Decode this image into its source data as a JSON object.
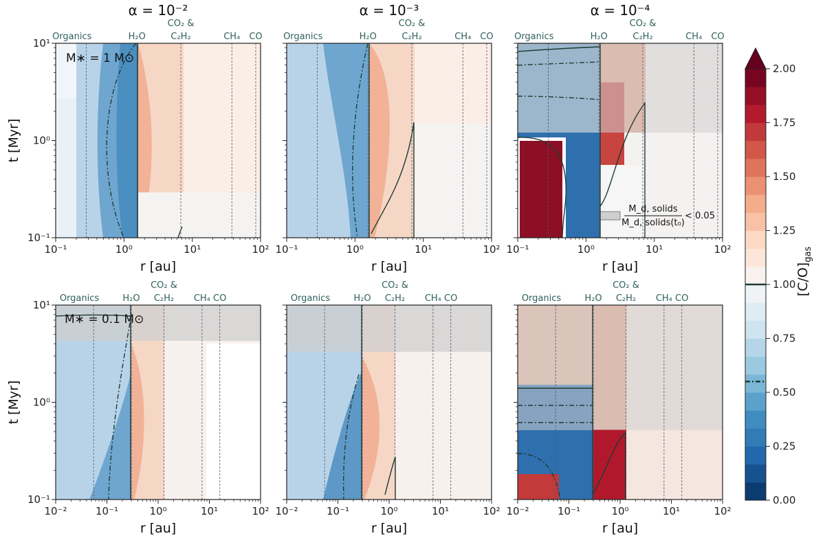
{
  "chart_data": [
    {
      "type": "heatmap",
      "panel": "top-left",
      "title": "α = 10⁻²",
      "annotation": "M∗ = 1 M⊙",
      "xlabel": "r [au]",
      "ylabel": "t [Myr]",
      "xscale": "log",
      "yscale": "log",
      "xlim": [
        0.1,
        100
      ],
      "ylim": [
        0.1,
        10
      ],
      "xticks": [
        "10⁻¹",
        "10⁰",
        "10¹",
        "10²"
      ],
      "yticks": [
        "10⁻¹",
        "10⁰",
        "10¹"
      ],
      "snowlines": [
        {
          "name": "Organics",
          "r": 0.28
        },
        {
          "name": "H₂O",
          "r": 1.55
        },
        {
          "name": "CO₂ & C₂H₂",
          "r": 6.8
        },
        {
          "name": "CH₄",
          "r": 38
        },
        {
          "name": "CO",
          "r": 85
        }
      ]
    },
    {
      "type": "heatmap",
      "panel": "top-middle",
      "title": "α = 10⁻³",
      "xlabel": "r [au]",
      "xscale": "log",
      "yscale": "log",
      "xlim": [
        0.1,
        100
      ],
      "ylim": [
        0.1,
        10
      ],
      "xticks": [
        "10⁻¹",
        "10⁰",
        "10¹",
        "10²"
      ],
      "snowlines": [
        {
          "name": "Organics",
          "r": 0.28
        },
        {
          "name": "H₂O",
          "r": 1.55
        },
        {
          "name": "CO₂ & C₂H₂",
          "r": 6.8
        },
        {
          "name": "CH₄",
          "r": 38
        },
        {
          "name": "CO",
          "r": 85
        }
      ]
    },
    {
      "type": "heatmap",
      "panel": "top-right",
      "title": "α = 10⁻⁴",
      "xlabel": "r [au]",
      "xscale": "log",
      "yscale": "log",
      "xlim": [
        0.1,
        100
      ],
      "ylim": [
        0.1,
        10
      ],
      "xticks": [
        "10⁻¹",
        "10⁰",
        "10¹",
        "10²"
      ],
      "grey_region_t_above": 1.25,
      "legend_label_num": "M_d, solids",
      "legend_label_den": "M_d, solids(t₀)",
      "legend_label_cond": "< 0.05",
      "snowlines": [
        {
          "name": "Organics",
          "r": 0.28
        },
        {
          "name": "H₂O",
          "r": 1.55
        },
        {
          "name": "CO₂ & C₂H₂",
          "r": 6.8
        },
        {
          "name": "CH₄",
          "r": 38
        },
        {
          "name": "CO",
          "r": 85
        }
      ]
    },
    {
      "type": "heatmap",
      "panel": "bottom-left",
      "annotation": "M∗ = 0.1 M⊙",
      "xlabel": "r [au]",
      "ylabel": "t [Myr]",
      "xscale": "log",
      "yscale": "log",
      "xlim": [
        0.01,
        100
      ],
      "ylim": [
        0.1,
        10
      ],
      "xticks": [
        "10⁻²",
        "10⁻¹",
        "10⁰",
        "10¹",
        "10²"
      ],
      "yticks": [
        "10⁻¹",
        "10⁰",
        "10¹"
      ],
      "grey_region_t_above": 4.3,
      "snowlines": [
        {
          "name": "Organics",
          "r": 0.055
        },
        {
          "name": "H₂O",
          "r": 0.3
        },
        {
          "name": "CO₂ & C₂H₂",
          "r": 1.3
        },
        {
          "name": "CH₄",
          "r": 7.2
        },
        {
          "name": "CO",
          "r": 16
        }
      ]
    },
    {
      "type": "heatmap",
      "panel": "bottom-middle",
      "xlabel": "r [au]",
      "xscale": "log",
      "yscale": "log",
      "xlim": [
        0.01,
        100
      ],
      "ylim": [
        0.1,
        10
      ],
      "xticks": [
        "10⁻²",
        "10⁻¹",
        "10⁰",
        "10¹",
        "10²"
      ],
      "grey_region_t_above": 3.4,
      "snowlines": [
        {
          "name": "Organics",
          "r": 0.055
        },
        {
          "name": "H₂O",
          "r": 0.3
        },
        {
          "name": "CO₂ & C₂H₂",
          "r": 1.3
        },
        {
          "name": "CH₄",
          "r": 7.2
        },
        {
          "name": "CO",
          "r": 16
        }
      ]
    },
    {
      "type": "heatmap",
      "panel": "bottom-right",
      "xlabel": "r [au]",
      "xscale": "log",
      "yscale": "log",
      "xlim": [
        0.01,
        100
      ],
      "ylim": [
        0.1,
        10
      ],
      "xticks": [
        "10⁻²",
        "10⁻¹",
        "10⁰",
        "10¹",
        "10²"
      ],
      "grey_region_t_above": 0.55,
      "snowlines": [
        {
          "name": "Organics",
          "r": 0.055
        },
        {
          "name": "H₂O",
          "r": 0.3
        },
        {
          "name": "CO₂ & C₂H₂",
          "r": 1.3
        },
        {
          "name": "CH₄",
          "r": 7.2
        },
        {
          "name": "CO",
          "r": 16
        }
      ]
    }
  ],
  "colorbar": {
    "label": "[C/O]gas",
    "label_main": "[C/O]",
    "label_sub": "gas",
    "min": 0.0,
    "max": 2.0,
    "extend": "max",
    "ticks": [
      "0.00",
      "0.25",
      "0.50",
      "0.75",
      "1.00",
      "1.25",
      "1.50",
      "1.75",
      "2.00"
    ],
    "tick_values": [
      0,
      0.25,
      0.5,
      0.75,
      1.0,
      1.25,
      1.5,
      1.75,
      2.0
    ],
    "solid_contour": 1.0,
    "dashdot_contour": 0.55,
    "colormap": "RdBu_r"
  },
  "colors": {
    "grey_overlay": "#cfcfcf",
    "contour": "#1f3b33",
    "snowline_text": "#2f5f5a"
  }
}
